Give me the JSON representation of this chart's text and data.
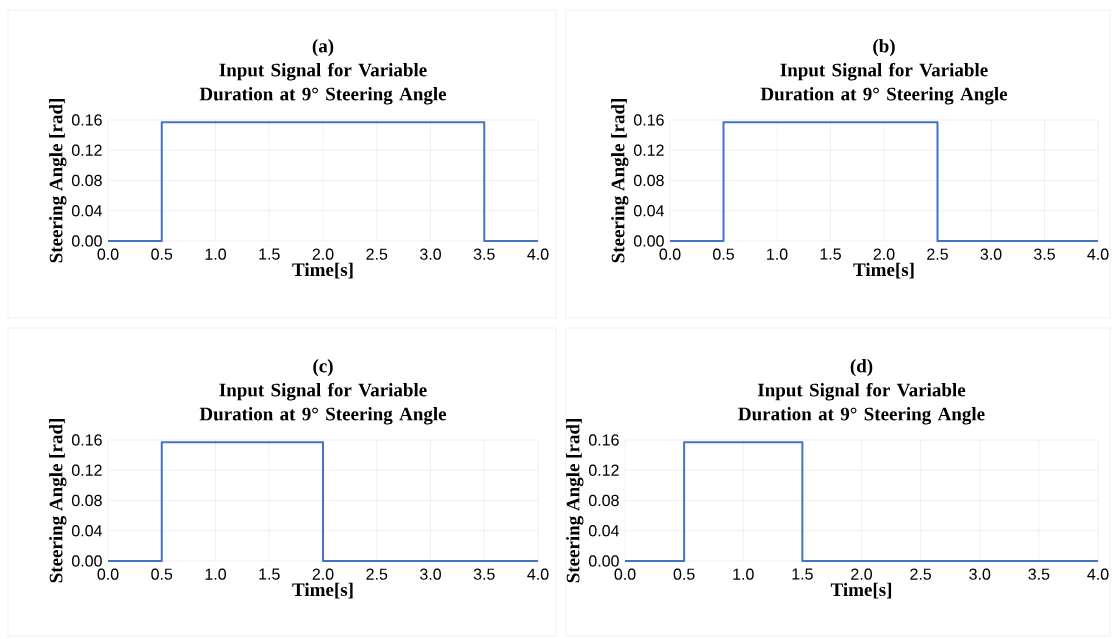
{
  "chart_data": [
    {
      "type": "line",
      "title": "(a)",
      "subtitle": "Input Signal for Variable Duration at 9° Steering Angle",
      "xlabel": "Time[s]",
      "ylabel": "Steering Angle [rad]",
      "grid": true,
      "series": [
        {
          "color": "#4472c4",
          "x": [
            0,
            0.5,
            0.5,
            3.5,
            3.5,
            4.0
          ],
          "values": [
            0,
            0,
            0.157,
            0.157,
            0,
            0
          ]
        }
      ],
      "xlim": [
        0,
        4
      ],
      "ylim": [
        0,
        0.16
      ],
      "xticks": [
        {
          "value": 0,
          "label": "0.0"
        },
        {
          "value": 0.5,
          "label": "0.5"
        },
        {
          "value": 1,
          "label": "1.0"
        },
        {
          "value": 1.5,
          "label": "1.5"
        },
        {
          "value": 2,
          "label": "2.0"
        },
        {
          "value": 2.5,
          "label": "2.5"
        },
        {
          "value": 3,
          "label": "3.0"
        },
        {
          "value": 3.5,
          "label": "3.5"
        },
        {
          "value": 4,
          "label": "4.0"
        }
      ],
      "yticks": [
        {
          "value": 0,
          "label": "0.00"
        },
        {
          "value": 0.04,
          "label": "0.04"
        },
        {
          "value": 0.08,
          "label": "0.08"
        },
        {
          "value": 0.12,
          "label": "0.12"
        },
        {
          "value": 0.16,
          "label": "0.16"
        }
      ]
    },
    {
      "type": "line",
      "title": "(b)",
      "subtitle": "Input Signal for Variable Duration at 9° Steering Angle",
      "xlabel": "Time[s]",
      "ylabel": "Steering Angle [rad]",
      "grid": true,
      "series": [
        {
          "color": "#4472c4",
          "x": [
            0,
            0.5,
            0.5,
            2.5,
            2.5,
            4.0
          ],
          "values": [
            0,
            0,
            0.157,
            0.157,
            0,
            0
          ]
        }
      ],
      "xlim": [
        0,
        4
      ],
      "ylim": [
        0,
        0.16
      ],
      "xticks": [
        {
          "value": 0,
          "label": "0.0"
        },
        {
          "value": 0.5,
          "label": "0.5"
        },
        {
          "value": 1,
          "label": "1.0"
        },
        {
          "value": 1.5,
          "label": "1.5"
        },
        {
          "value": 2,
          "label": "2.0"
        },
        {
          "value": 2.5,
          "label": "2.5"
        },
        {
          "value": 3,
          "label": "3.0"
        },
        {
          "value": 3.5,
          "label": "3.5"
        },
        {
          "value": 4,
          "label": "4.0"
        }
      ],
      "yticks": [
        {
          "value": 0,
          "label": "0.00"
        },
        {
          "value": 0.04,
          "label": "0.04"
        },
        {
          "value": 0.08,
          "label": "0.08"
        },
        {
          "value": 0.12,
          "label": "0.12"
        },
        {
          "value": 0.16,
          "label": "0.16"
        }
      ]
    },
    {
      "type": "line",
      "title": "(c)",
      "subtitle": "Input Signal for Variable Duration at 9° Steering Angle",
      "xlabel": "Time[s]",
      "ylabel": "Steering Angle [rad]",
      "grid": true,
      "series": [
        {
          "color": "#4472c4",
          "x": [
            0,
            0.5,
            0.5,
            2.0,
            2.0,
            4.0
          ],
          "values": [
            0,
            0,
            0.157,
            0.157,
            0,
            0
          ]
        }
      ],
      "xlim": [
        0,
        4
      ],
      "ylim": [
        0,
        0.16
      ],
      "xticks": [
        {
          "value": 0,
          "label": "0.0"
        },
        {
          "value": 0.5,
          "label": "0.5"
        },
        {
          "value": 1,
          "label": "1.0"
        },
        {
          "value": 1.5,
          "label": "1.5"
        },
        {
          "value": 2,
          "label": "2.0"
        },
        {
          "value": 2.5,
          "label": "2.5"
        },
        {
          "value": 3,
          "label": "3.0"
        },
        {
          "value": 3.5,
          "label": "3.5"
        },
        {
          "value": 4,
          "label": "4.0"
        }
      ],
      "yticks": [
        {
          "value": 0,
          "label": "0.00"
        },
        {
          "value": 0.04,
          "label": "0.04"
        },
        {
          "value": 0.08,
          "label": "0.08"
        },
        {
          "value": 0.12,
          "label": "0.12"
        },
        {
          "value": 0.16,
          "label": "0.16"
        }
      ]
    },
    {
      "type": "line",
      "title": "(d)",
      "subtitle": "Input Signal for Variable Duration at 9° Steering Angle",
      "xlabel": "Time[s]",
      "ylabel": "Steering Angle [rad]",
      "grid": true,
      "series": [
        {
          "color": "#4472c4",
          "x": [
            0,
            0.5,
            0.5,
            1.5,
            1.5,
            4.0
          ],
          "values": [
            0,
            0,
            0.157,
            0.157,
            0,
            0
          ]
        }
      ],
      "xlim": [
        0,
        4
      ],
      "ylim": [
        0,
        0.16
      ],
      "xticks": [
        {
          "value": 0,
          "label": "0.0"
        },
        {
          "value": 0.5,
          "label": "0.5"
        },
        {
          "value": 1,
          "label": "1.0"
        },
        {
          "value": 1.5,
          "label": "1.5"
        },
        {
          "value": 2,
          "label": "2.0"
        },
        {
          "value": 2.5,
          "label": "2.5"
        },
        {
          "value": 3,
          "label": "3.0"
        },
        {
          "value": 3.5,
          "label": "3.5"
        },
        {
          "value": 4,
          "label": "4.0"
        }
      ],
      "yticks": [
        {
          "value": 0,
          "label": "0.00"
        },
        {
          "value": 0.04,
          "label": "0.04"
        },
        {
          "value": 0.08,
          "label": "0.08"
        },
        {
          "value": 0.12,
          "label": "0.12"
        },
        {
          "value": 0.16,
          "label": "0.16"
        }
      ]
    }
  ]
}
